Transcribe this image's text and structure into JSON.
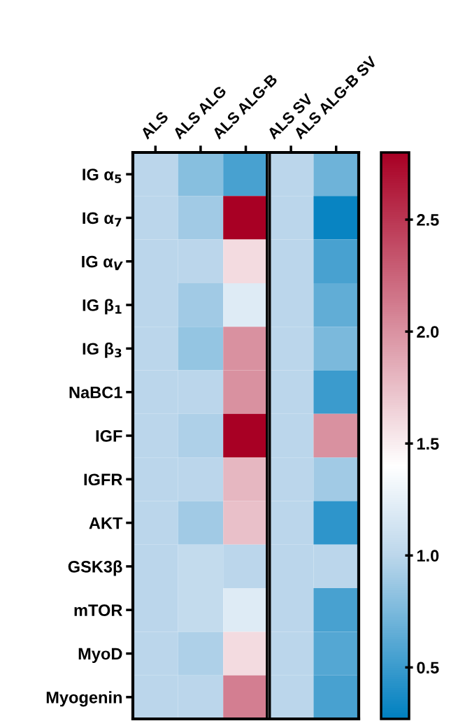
{
  "chart_data": {
    "type": "heatmap",
    "categories": [
      "ALS",
      "ALS ALG",
      "ALS ALG-B",
      "ALS SV",
      "ALS ALG-B SV"
    ],
    "y_categories": [
      "IG α$_{5}$",
      "IG α$_{7}$",
      "IG α$_{V}$",
      "IG β$_{1}$",
      "IG β$_{3}$",
      "NaBC1",
      "IGF",
      "IGFR",
      "AKT",
      "GSK3β",
      "mTOR",
      "MyoD",
      "Myogenin"
    ],
    "cells": [
      [
        1.0,
        0.8,
        0.55,
        1.0,
        0.7
      ],
      [
        1.0,
        0.9,
        2.8,
        1.0,
        0.3
      ],
      [
        1.0,
        1.0,
        1.6,
        1.0,
        0.55
      ],
      [
        1.0,
        0.9,
        1.2,
        1.0,
        0.65
      ],
      [
        1.0,
        0.85,
        2.0,
        1.0,
        0.75
      ],
      [
        1.0,
        1.0,
        2.0,
        1.0,
        0.5
      ],
      [
        1.0,
        0.95,
        2.8,
        1.0,
        2.0
      ],
      [
        1.0,
        1.0,
        1.8,
        1.0,
        0.9
      ],
      [
        1.0,
        0.9,
        1.75,
        1.0,
        0.45
      ],
      [
        1.0,
        1.05,
        1.0,
        1.0,
        1.0
      ],
      [
        1.0,
        1.05,
        1.2,
        1.0,
        0.55
      ],
      [
        1.0,
        0.95,
        1.6,
        1.0,
        0.6
      ],
      [
        1.0,
        1.0,
        2.1,
        1.0,
        0.55
      ]
    ],
    "clim": [
      0.27,
      2.8
    ],
    "cticks": [
      0.5,
      {
        "value": 1,
        "label": "1.0"
      },
      1.5,
      {
        "value": 2,
        "label": "2.0"
      },
      2.5
    ]
  }
}
